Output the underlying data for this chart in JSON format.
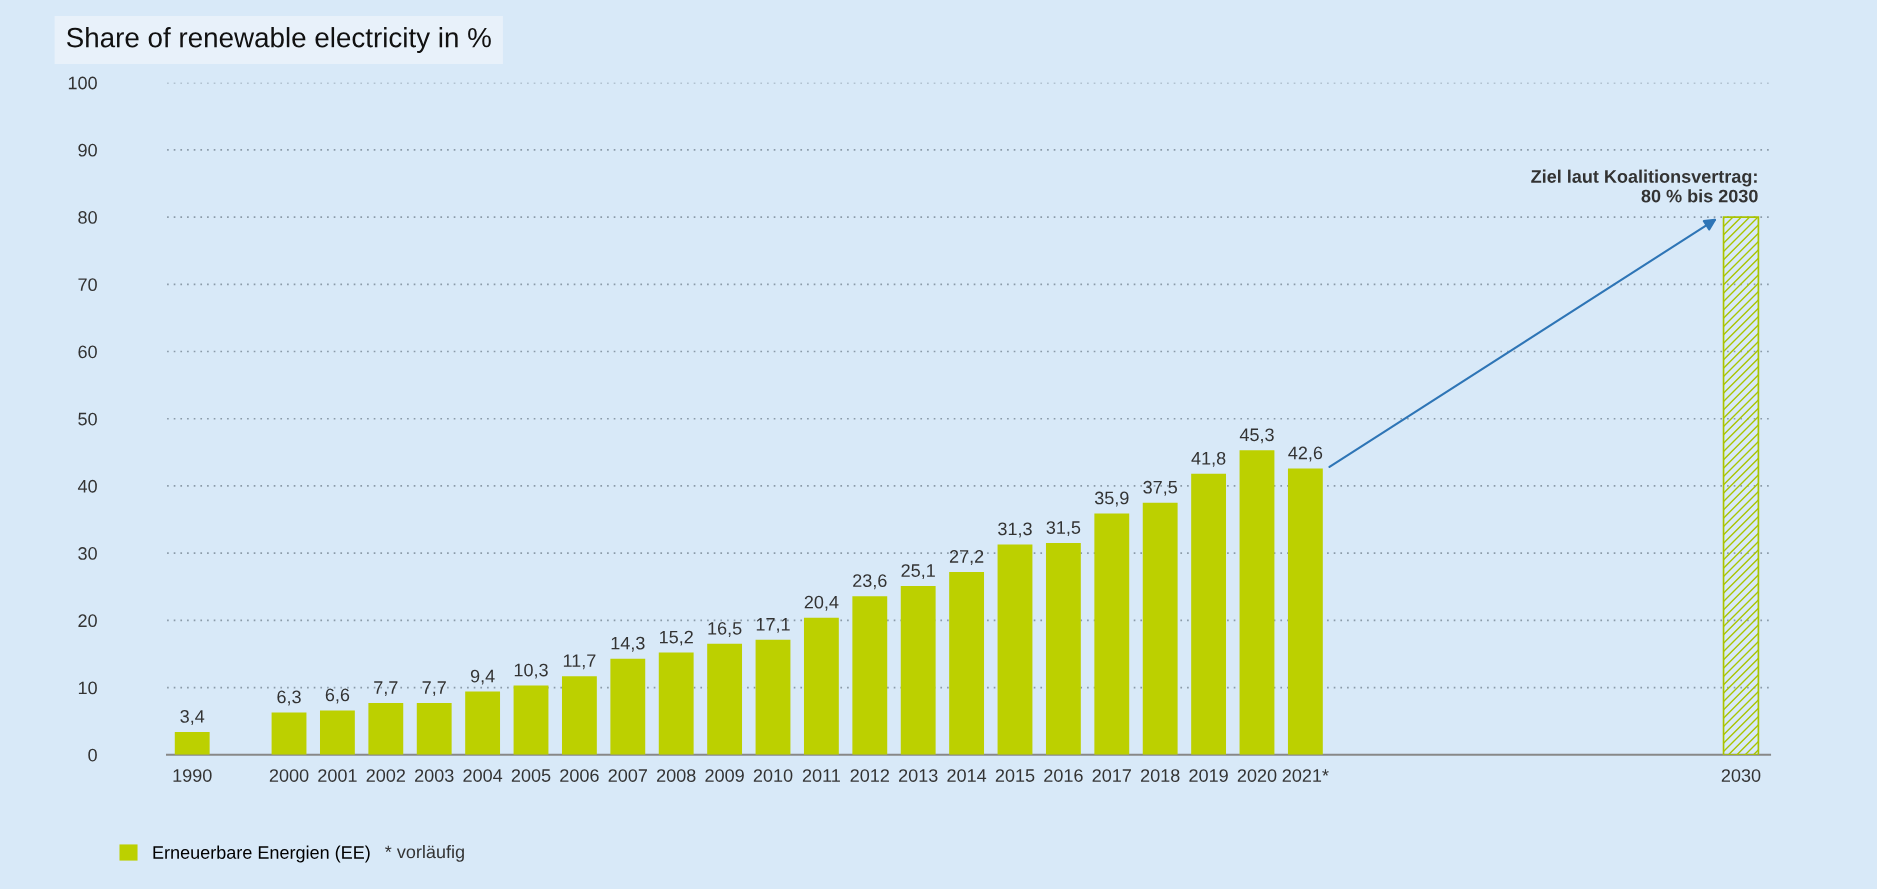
{
  "chart_data": {
    "type": "bar",
    "title": "Share of renewable electricity in %",
    "categories": [
      "1990",
      null,
      "2000",
      "2001",
      "2002",
      "2003",
      "2004",
      "2005",
      "2006",
      "2007",
      "2008",
      "2009",
      "2010",
      "2011",
      "2012",
      "2013",
      "2014",
      "2015",
      "2016",
      "2017",
      "2018",
      "2019",
      "2020",
      "2021*",
      null,
      null,
      null,
      null,
      null,
      null,
      null,
      null,
      "2030"
    ],
    "series": [
      {
        "name": "Erneuerbare Energien (EE)",
        "color": "#bcd000",
        "values": [
          3.4,
          null,
          6.3,
          6.6,
          7.7,
          7.7,
          9.4,
          10.3,
          11.7,
          14.3,
          15.2,
          16.5,
          17.1,
          20.4,
          23.6,
          25.1,
          27.2,
          31.3,
          31.5,
          35.9,
          37.5,
          41.8,
          45.3,
          42.6,
          null,
          null,
          null,
          null,
          null,
          null,
          null,
          null,
          null
        ],
        "value_labels": [
          "3,4",
          null,
          "6,3",
          "6,6",
          "7,7",
          "7,7",
          "9,4",
          "10,3",
          "11,7",
          "14,3",
          "15,2",
          "16,5",
          "17,1",
          "20,4",
          "23,6",
          "25,1",
          "27,2",
          "31,3",
          "31,5",
          "35,9",
          "37,5",
          "41,8",
          "45,3",
          "42,6",
          null,
          null,
          null,
          null,
          null,
          null,
          null,
          null,
          null
        ]
      },
      {
        "color": "#a9c400",
        "values": [
          null,
          null,
          null,
          null,
          null,
          null,
          null,
          null,
          null,
          null,
          null,
          null,
          null,
          null,
          null,
          null,
          null,
          null,
          null,
          null,
          null,
          null,
          null,
          null,
          null,
          null,
          null,
          null,
          null,
          null,
          null,
          null,
          80
        ]
      }
    ],
    "ylim": [
      0,
      100
    ],
    "yticks": [
      0,
      10,
      20,
      30,
      40,
      50,
      60,
      70,
      80,
      90,
      100
    ],
    "grid": "y",
    "legend": "bottom left",
    "annotations": [
      {
        "text": "Ziel laut Koalitionsvertrag:\n80 % bis 2030",
        "x": "2030",
        "y": 80
      },
      "* vorläufig"
    ]
  }
}
